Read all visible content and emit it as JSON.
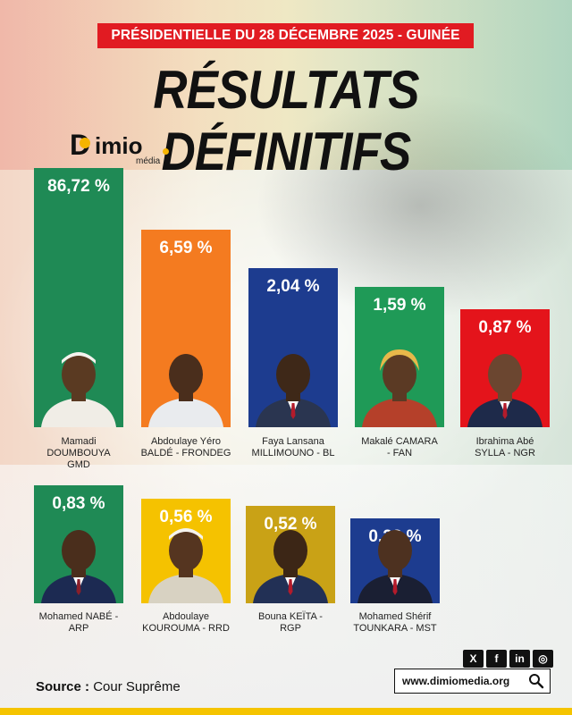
{
  "banner": "PRÉSIDENTIELLE DU 28 DÉCEMBRE 2025 - GUINÉE",
  "title": "RÉSULTATS DÉFINITIFS",
  "logo": {
    "d": "D",
    "rest": "imio",
    "sub": "média"
  },
  "chart_data": {
    "type": "bar",
    "title": "RÉSULTATS DÉFINITIFS",
    "unit": "%",
    "ylim": [
      0,
      100
    ],
    "categories": [
      "Mamadi DOUMBOUYA GMD",
      "Abdoulaye Yéro BALDÉ - FRONDEG",
      "Faya Lansana MILLIMOUNO - BL",
      "Makalé CAMARA - FAN",
      "Ibrahima Abé SYLLA - NGR",
      "Mohamed NABÉ - ARP",
      "Abdoulaye KOUROUMA - RRD",
      "Bouna KEÏTA - RGP",
      "Mohamed Shérif TOUNKARA - MST"
    ],
    "values": [
      86.72,
      6.59,
      2.04,
      1.59,
      0.87,
      0.83,
      0.56,
      0.52,
      0.28
    ],
    "value_labels": [
      "86,72 %",
      "6,59 %",
      "2,04 %",
      "1,59 %",
      "0,87 %",
      "0,83 %",
      "0,56 %",
      "0,52 %",
      "0,28 %"
    ],
    "name_lines": [
      [
        "Mamadi",
        "DOUMBOUYA",
        "GMD"
      ],
      [
        "Abdoulaye Yéro",
        "BALDÉ - FRONDEG"
      ],
      [
        "Faya Lansana",
        "MILLIMOUNO - BL"
      ],
      [
        "Makalé CAMARA",
        "- FAN"
      ],
      [
        "Ibrahima Abé",
        "SYLLA - NGR"
      ],
      [
        "Mohamed NABÉ -",
        "ARP"
      ],
      [
        "Abdoulaye",
        "KOUROUMA - RRD"
      ],
      [
        "Bouna KEÏTA -",
        "RGP"
      ],
      [
        "Mohamed Shérif",
        "TOUNKARA - MST"
      ]
    ],
    "colors": [
      "#1f8a55",
      "#f47b20",
      "#1d3c8f",
      "#1f9a57",
      "#e4141b",
      "#1f8a55",
      "#f5c200",
      "#c9a216",
      "#1d3c8f"
    ],
    "skin": [
      "#5a3a22",
      "#4a2e1c",
      "#3e2818",
      "#5b3a24",
      "#6b4630",
      "#4a2e1c",
      "#553520",
      "#3c2616",
      "#4d3120"
    ],
    "attire": [
      "#f0ede6",
      "#e9ebee",
      "#2a3550",
      "#b5402a",
      "#1e2a4a",
      "#1c2a52",
      "#d8d2c2",
      "#223055",
      "#1a1f33"
    ]
  },
  "source": {
    "label": "Source :",
    "value": "Cour Suprême"
  },
  "social": [
    "X",
    "f",
    "in",
    "◎"
  ],
  "website": "www.dimiomedia.org",
  "icons": {
    "search": "search-icon"
  }
}
